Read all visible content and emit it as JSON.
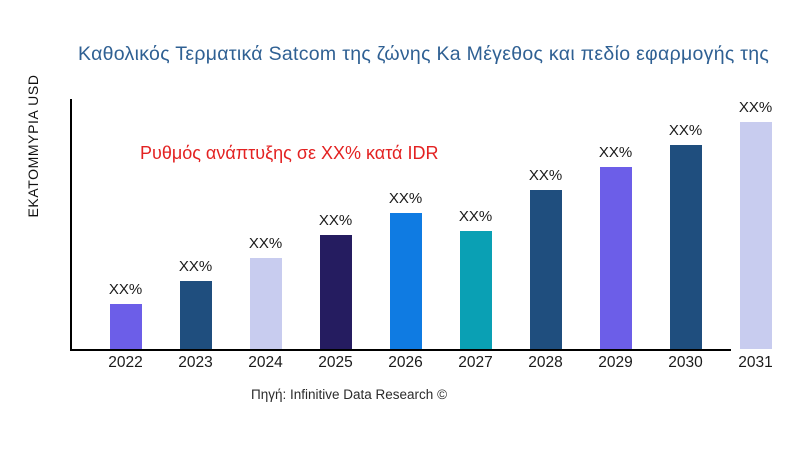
{
  "title": {
    "text": "Καθολικός Τερματικά Satcom της ζώνης Ka Μέγεθος και πεδίο εφαρμογής της",
    "color": "#2F6093"
  },
  "annotation": {
    "text": "Ρυθμός ανάπτυξης σε XX% κατά IDR",
    "color": "#E32222"
  },
  "y_axis_label": "ΕΚΑΤΟΜΜΥΡΙΑ USD",
  "source": "Πηγή: Infinitive Data Research ©",
  "chart_data": {
    "type": "bar",
    "title": "Καθολικός Τερματικά Satcom της ζώνης Ka Μέγεθος και πεδίο εφαρμογής της",
    "xlabel": "",
    "ylabel": "ΕΚΑΤΟΜΜΥΡΙΑ USD",
    "categories": [
      "2022",
      "2023",
      "2024",
      "2025",
      "2026",
      "2027",
      "2028",
      "2029",
      "2030",
      "2031"
    ],
    "value_labels": [
      "XX%",
      "XX%",
      "XX%",
      "XX%",
      "XX%",
      "XX%",
      "XX%",
      "XX%",
      "XX%",
      "XX%"
    ],
    "relative_values_estimated": [
      20,
      30,
      40,
      50,
      60,
      52,
      70,
      80,
      90,
      100
    ],
    "bar_colors": [
      "#6C5EE8",
      "#1F4E7E",
      "#C8CCEF",
      "#251C60",
      "#0F7BE2",
      "#0AA0B4",
      "#1F4E7E",
      "#6C5EE8",
      "#1F4E7E",
      "#C8CCEF"
    ],
    "annotation": "Ρυθμός ανάπτυξης σε XX% κατά IDR",
    "grid": false,
    "legend": false,
    "y_ticks_visible": false
  }
}
